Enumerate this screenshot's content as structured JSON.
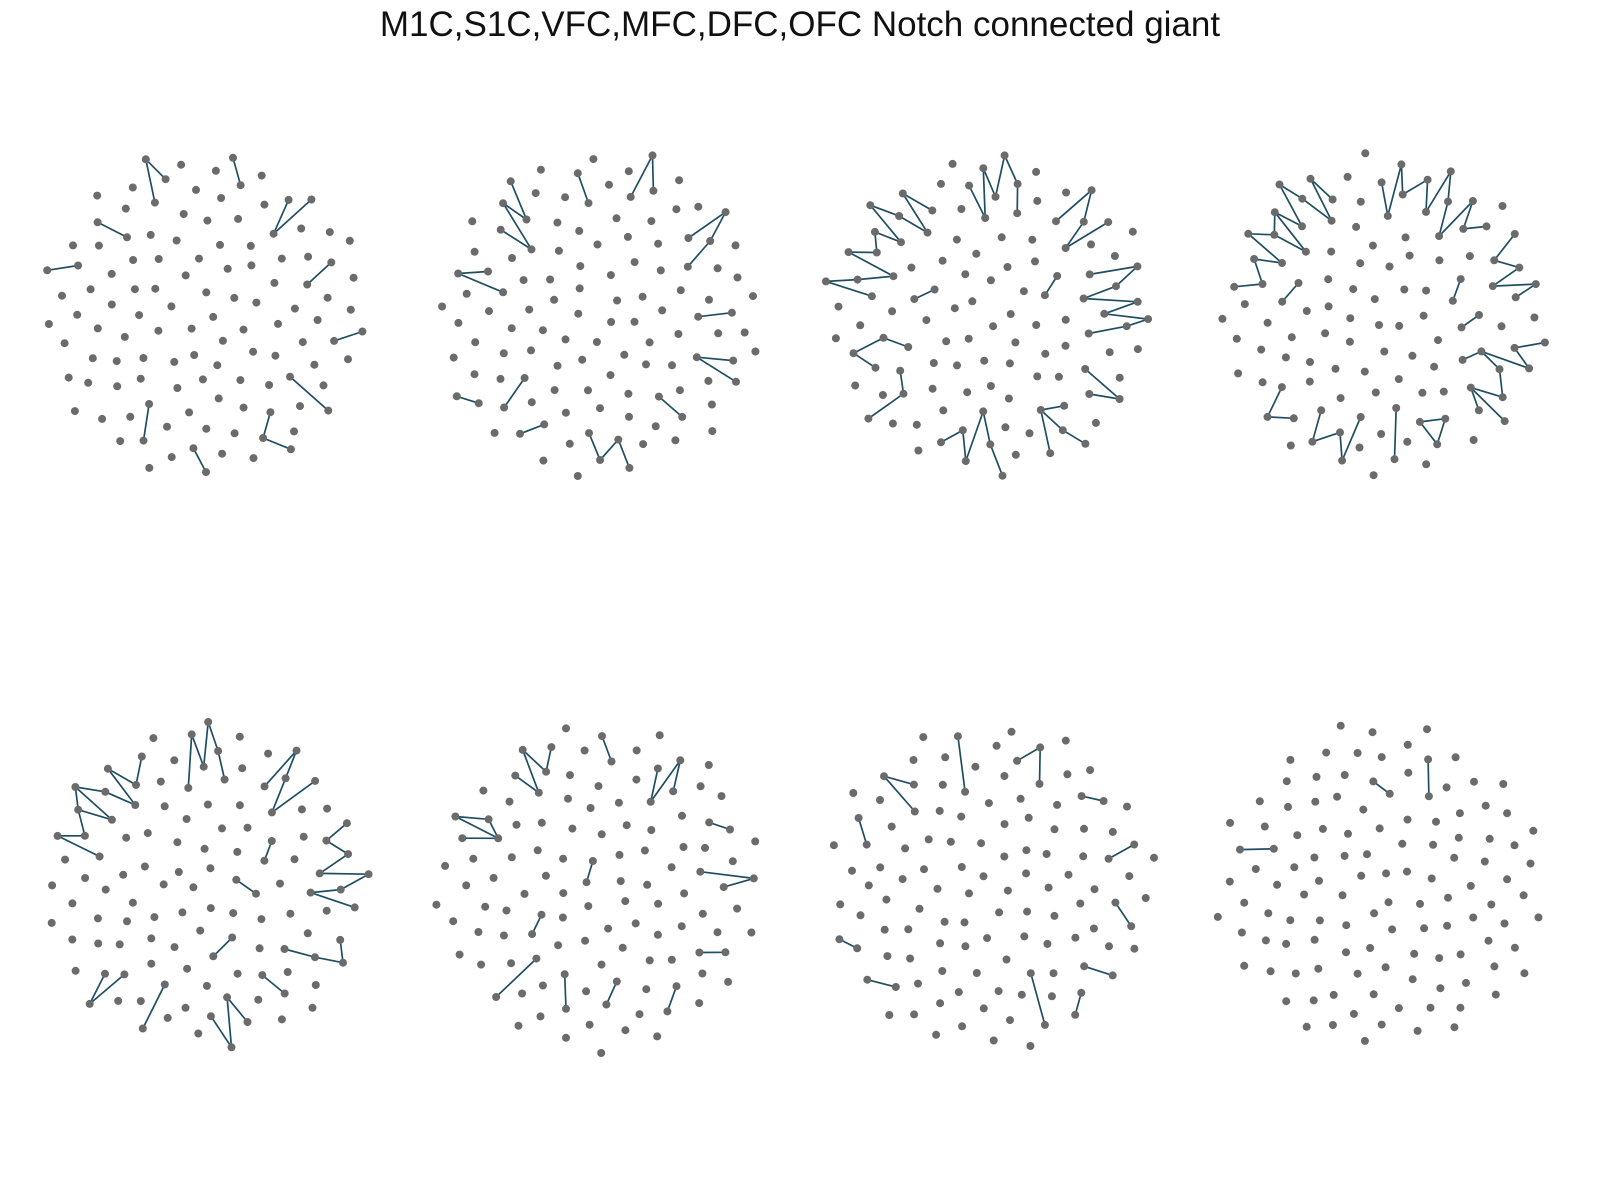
{
  "title": "M1C,S1C,VFC,MFC,DFC,OFC Notch connected giant",
  "colors": {
    "node": "#6b6b6b",
    "edge": "#1f4e63",
    "background": "#ffffff"
  },
  "panels": [
    {
      "id": "panel-1",
      "nodes": 118,
      "extra_edges": 14,
      "paths": [
        [
          3,
          4
        ],
        [
          8,
          9
        ],
        [
          14,
          15,
          16
        ],
        [
          22,
          23
        ],
        [
          27,
          28,
          29
        ],
        [
          35,
          36
        ],
        [
          41,
          42
        ],
        [
          47,
          48
        ],
        [
          53,
          54
        ],
        [
          60,
          61
        ],
        [
          66,
          67
        ]
      ]
    },
    {
      "id": "panel-2",
      "nodes": 118,
      "extra_edges": 22,
      "paths": [
        [
          3,
          4,
          5
        ],
        [
          9,
          10,
          11,
          12,
          13
        ],
        [
          18,
          19
        ],
        [
          24,
          25,
          26
        ],
        [
          31,
          32,
          33,
          34
        ],
        [
          40,
          41
        ],
        [
          45,
          46,
          47
        ],
        [
          52,
          53
        ],
        [
          58,
          59,
          60,
          61
        ],
        [
          66,
          67
        ],
        [
          70,
          71
        ]
      ]
    },
    {
      "id": "panel-3",
      "nodes": 118,
      "extra_edges": 52,
      "paths": [
        [
          2,
          3,
          4,
          5,
          6,
          7,
          8,
          9,
          10,
          11,
          12,
          13,
          14
        ],
        [
          18,
          19,
          20,
          21,
          22,
          23,
          24
        ],
        [
          28,
          29,
          30,
          31,
          32
        ],
        [
          36,
          37,
          38,
          39,
          40,
          41,
          42,
          43,
          44
        ],
        [
          48,
          49,
          50
        ],
        [
          53,
          54,
          55,
          56
        ],
        [
          60,
          61,
          62,
          63,
          64,
          65
        ],
        [
          70,
          71
        ],
        [
          75,
          76,
          77
        ]
      ]
    },
    {
      "id": "panel-4",
      "nodes": 118,
      "extra_edges": 60,
      "paths": [
        [
          2,
          3,
          4,
          5,
          6,
          7,
          8,
          9,
          10,
          11,
          12,
          13,
          14,
          15
        ],
        [
          19,
          20,
          21,
          22,
          23,
          24,
          25,
          26,
          27,
          28,
          29
        ],
        [
          33,
          34,
          35,
          36,
          37,
          38
        ],
        [
          42,
          43,
          44,
          45,
          46,
          47,
          48,
          49
        ],
        [
          53,
          54,
          55
        ],
        [
          58,
          59
        ],
        [
          63,
          64,
          65,
          66,
          67
        ],
        [
          71,
          72
        ]
      ]
    },
    {
      "id": "panel-5",
      "nodes": 118,
      "extra_edges": 44,
      "paths": [
        [
          2,
          3,
          4,
          5,
          6,
          7,
          8,
          9,
          10,
          11,
          12
        ],
        [
          16,
          17,
          18,
          19,
          20,
          21
        ],
        [
          25,
          26,
          27,
          28,
          29
        ],
        [
          33,
          34,
          35,
          36,
          37,
          38,
          39,
          40
        ],
        [
          44,
          45,
          46
        ],
        [
          50,
          51
        ],
        [
          55,
          56,
          57,
          58
        ],
        [
          63,
          64
        ],
        [
          68,
          69,
          70
        ]
      ]
    },
    {
      "id": "panel-6",
      "nodes": 118,
      "extra_edges": 24,
      "paths": [
        [
          3,
          4,
          5,
          6
        ],
        [
          10,
          11,
          12,
          13,
          14
        ],
        [
          19,
          20
        ],
        [
          24,
          25,
          26,
          27
        ],
        [
          32,
          33
        ],
        [
          37,
          38,
          39
        ],
        [
          44,
          45
        ],
        [
          50,
          51
        ],
        [
          56,
          57
        ],
        [
          62,
          63
        ],
        [
          68,
          69
        ]
      ]
    },
    {
      "id": "panel-7",
      "nodes": 118,
      "extra_edges": 16,
      "paths": [
        [
          3,
          4
        ],
        [
          8,
          9,
          10
        ],
        [
          15,
          16
        ],
        [
          21,
          22,
          23
        ],
        [
          28,
          29
        ],
        [
          34,
          35
        ],
        [
          40,
          41
        ],
        [
          46,
          47
        ],
        [
          52,
          53
        ]
      ]
    },
    {
      "id": "panel-8",
      "nodes": 118,
      "extra_edges": 3,
      "paths": [
        [
          3,
          4
        ],
        [
          25,
          26
        ]
      ]
    }
  ]
}
